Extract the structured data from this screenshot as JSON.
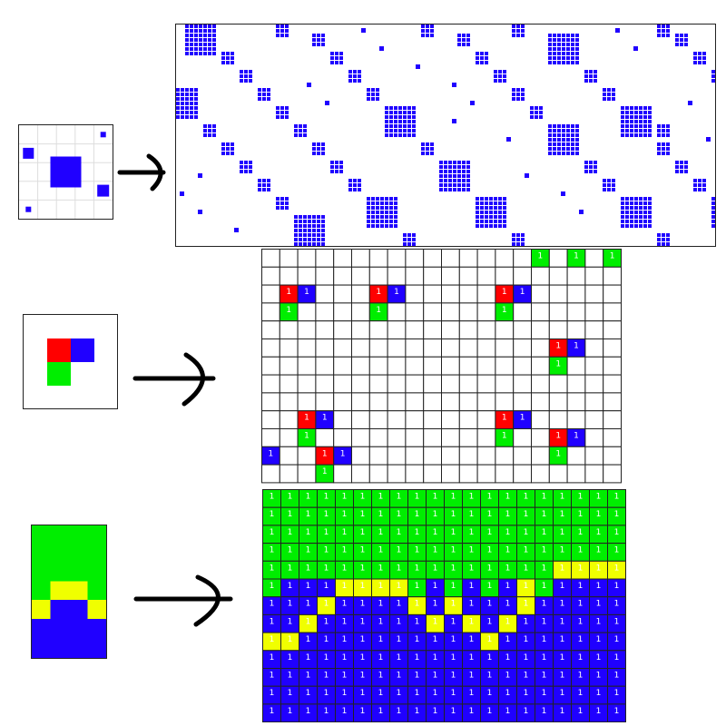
{
  "colors": {
    "blue": "#2000ff",
    "red": "#ff0000",
    "green": "#00ee00",
    "yellow": "#f0ff00",
    "grid_light": "#dddddd",
    "grid_dark": "#222222",
    "arrow": "#000000"
  },
  "cell_value": "1",
  "panel1": {
    "input_grid_size": 5,
    "input_cells": [
      {
        "r": 0,
        "c": 4,
        "color": "blue"
      },
      {
        "r": 1,
        "c": 0,
        "color": "blue"
      },
      {
        "r": 2,
        "c": 2,
        "color": "blue"
      },
      {
        "r": 3,
        "c": 4,
        "color": "blue"
      },
      {
        "r": 4,
        "c": 0,
        "color": "blue"
      }
    ]
  },
  "panel2": {
    "input_cells": [
      {
        "r": 0,
        "c": 0,
        "color": "red"
      },
      {
        "r": 0,
        "c": 1,
        "color": "blue"
      },
      {
        "r": 1,
        "c": 0,
        "color": "green"
      }
    ],
    "output_rows": 13,
    "output_cols": 20,
    "output_cells": [
      {
        "r": 0,
        "c": 15,
        "color": "green",
        "label": true
      },
      {
        "r": 0,
        "c": 17,
        "color": "green",
        "label": true
      },
      {
        "r": 0,
        "c": 19,
        "color": "green",
        "label": true
      },
      {
        "r": 2,
        "c": 1,
        "color": "red",
        "label": true
      },
      {
        "r": 2,
        "c": 2,
        "color": "blue",
        "label": true
      },
      {
        "r": 3,
        "c": 1,
        "color": "green",
        "label": true
      },
      {
        "r": 2,
        "c": 6,
        "color": "red",
        "label": true
      },
      {
        "r": 2,
        "c": 7,
        "color": "blue",
        "label": true
      },
      {
        "r": 3,
        "c": 6,
        "color": "green",
        "label": true
      },
      {
        "r": 2,
        "c": 13,
        "color": "red",
        "label": true
      },
      {
        "r": 2,
        "c": 14,
        "color": "blue",
        "label": true
      },
      {
        "r": 3,
        "c": 13,
        "color": "green",
        "label": true
      },
      {
        "r": 5,
        "c": 16,
        "color": "red",
        "label": true
      },
      {
        "r": 5,
        "c": 17,
        "color": "blue",
        "label": true
      },
      {
        "r": 6,
        "c": 16,
        "color": "green",
        "label": true
      },
      {
        "r": 9,
        "c": 2,
        "color": "red",
        "label": true
      },
      {
        "r": 9,
        "c": 3,
        "color": "blue",
        "label": true
      },
      {
        "r": 10,
        "c": 2,
        "color": "green",
        "label": true
      },
      {
        "r": 9,
        "c": 13,
        "color": "red",
        "label": true
      },
      {
        "r": 9,
        "c": 14,
        "color": "blue",
        "label": true
      },
      {
        "r": 10,
        "c": 13,
        "color": "green",
        "label": true
      },
      {
        "r": 10,
        "c": 16,
        "color": "red",
        "label": true
      },
      {
        "r": 10,
        "c": 17,
        "color": "blue",
        "label": true
      },
      {
        "r": 11,
        "c": 16,
        "color": "green",
        "label": true
      },
      {
        "r": 11,
        "c": 3,
        "color": "red",
        "label": true
      },
      {
        "r": 11,
        "c": 4,
        "color": "blue",
        "label": true
      },
      {
        "r": 12,
        "c": 3,
        "color": "green",
        "label": true
      },
      {
        "r": 11,
        "c": 0,
        "color": "blue",
        "label": true
      }
    ]
  },
  "panel3": {
    "input_rows": [
      [
        "green",
        "green",
        "green",
        "green"
      ],
      [
        "green",
        "green",
        "green",
        "green"
      ],
      [
        "green",
        "green",
        "green",
        "green"
      ],
      [
        "green",
        "yellow",
        "yellow",
        "green"
      ],
      [
        "yellow",
        "blue",
        "blue",
        "yellow"
      ],
      [
        "blue",
        "blue",
        "blue",
        "blue"
      ],
      [
        "blue",
        "blue",
        "blue",
        "blue"
      ]
    ],
    "output_rows": 13,
    "output_cols": 20,
    "green_to_row": [
      6,
      5,
      5,
      5,
      6,
      5,
      5,
      5,
      6,
      5,
      6,
      5,
      6,
      5,
      5,
      6,
      4,
      4,
      5,
      4
    ],
    "yellow_cells": [
      {
        "r": 4,
        "c": 16
      },
      {
        "r": 4,
        "c": 17
      },
      {
        "r": 4,
        "c": 18
      },
      {
        "r": 4,
        "c": 19
      },
      {
        "r": 5,
        "c": 4
      },
      {
        "r": 5,
        "c": 5
      },
      {
        "r": 5,
        "c": 6
      },
      {
        "r": 5,
        "c": 7
      },
      {
        "r": 5,
        "c": 14
      },
      {
        "r": 6,
        "c": 3
      },
      {
        "r": 6,
        "c": 8
      },
      {
        "r": 6,
        "c": 10
      },
      {
        "r": 6,
        "c": 14
      },
      {
        "r": 7,
        "c": 2
      },
      {
        "r": 7,
        "c": 9
      },
      {
        "r": 7,
        "c": 11
      },
      {
        "r": 7,
        "c": 13
      },
      {
        "r": 8,
        "c": 0
      },
      {
        "r": 8,
        "c": 1
      },
      {
        "r": 8,
        "c": 12
      }
    ]
  }
}
